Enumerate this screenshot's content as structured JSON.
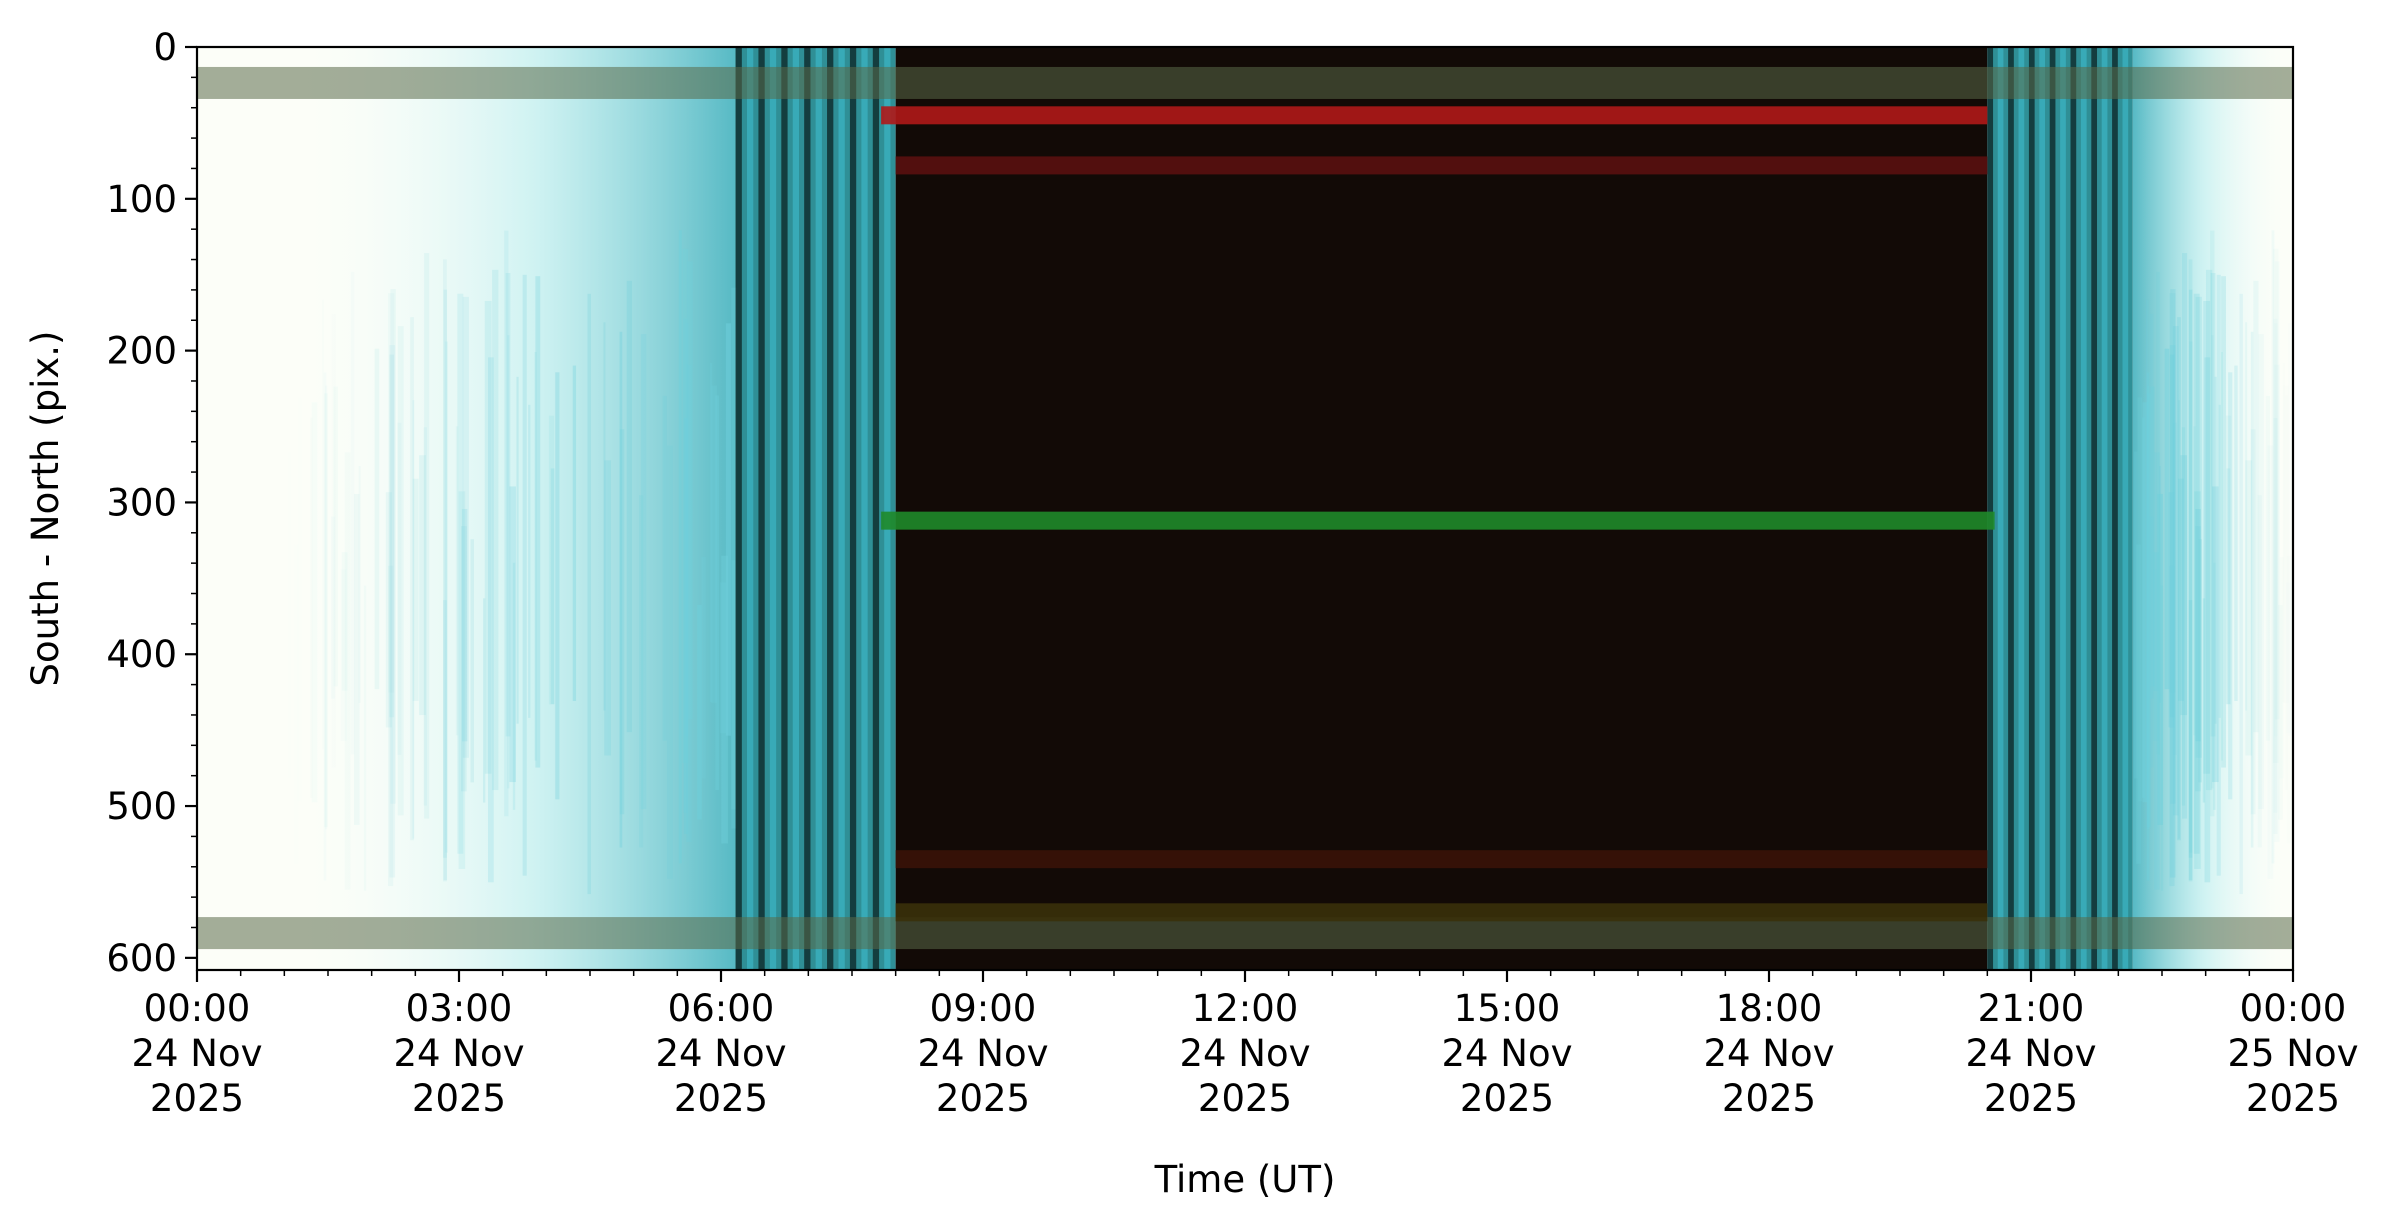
{
  "chart_data": {
    "type": "heatmap",
    "title": "",
    "xlabel": "Time (UT)",
    "ylabel": "South - North (pix.)",
    "xlim": [
      "2025-11-24T00:00",
      "2025-11-25T00:00"
    ],
    "ylim": [
      608,
      0
    ],
    "y_axis_inverted": true,
    "x_ticks": [
      {
        "time": "2025-11-24T00:00",
        "lines": [
          "00:00",
          "24 Nov",
          "2025"
        ]
      },
      {
        "time": "2025-11-24T03:00",
        "lines": [
          "03:00",
          "24 Nov",
          "2025"
        ]
      },
      {
        "time": "2025-11-24T06:00",
        "lines": [
          "06:00",
          "24 Nov",
          "2025"
        ]
      },
      {
        "time": "2025-11-24T09:00",
        "lines": [
          "09:00",
          "24 Nov",
          "2025"
        ]
      },
      {
        "time": "2025-11-24T12:00",
        "lines": [
          "12:00",
          "24 Nov",
          "2025"
        ]
      },
      {
        "time": "2025-11-24T15:00",
        "lines": [
          "15:00",
          "24 Nov",
          "2025"
        ]
      },
      {
        "time": "2025-11-24T18:00",
        "lines": [
          "18:00",
          "24 Nov",
          "2025"
        ]
      },
      {
        "time": "2025-11-24T21:00",
        "lines": [
          "21:00",
          "24 Nov",
          "2025"
        ]
      },
      {
        "time": "2025-11-25T00:00",
        "lines": [
          "00:00",
          "25 Nov",
          "2025"
        ]
      }
    ],
    "x_minor_tick_step_minutes": 30,
    "y_ticks": [
      0,
      100,
      200,
      300,
      400,
      500,
      600
    ],
    "y_minor_tick_step": 20,
    "regions": [
      {
        "name": "day-bright",
        "start": "2025-11-24T00:00",
        "end": "2025-11-24T06:10",
        "color": "#fcfef8"
      },
      {
        "name": "dusk-transition",
        "start": "2025-11-24T06:10",
        "end": "2025-11-24T08:00",
        "color": "#2f8f96"
      },
      {
        "name": "night",
        "start": "2025-11-24T08:00",
        "end": "2025-11-24T20:30",
        "color": "#120a06"
      },
      {
        "name": "dawn-transition",
        "start": "2025-11-24T20:30",
        "end": "2025-11-24T22:10",
        "color": "#2f8f96"
      },
      {
        "name": "day-bright",
        "start": "2025-11-24T22:10",
        "end": "2025-11-25T00:00",
        "color": "#fcfef8"
      }
    ],
    "bands": [
      {
        "y": 45,
        "start": "2025-11-24T07:50",
        "end": "2025-11-24T20:30",
        "color": "#b01818"
      },
      {
        "y": 78,
        "start": "2025-11-24T08:00",
        "end": "2025-11-24T20:30",
        "color": "#5a1010"
      },
      {
        "y": 312,
        "start": "2025-11-24T07:50",
        "end": "2025-11-24T20:35",
        "color": "#1f8a2a"
      },
      {
        "y": 535,
        "start": "2025-11-24T08:00",
        "end": "2025-11-24T20:30",
        "color": "#3a1208"
      },
      {
        "y": 570,
        "start": "2025-11-24T08:00",
        "end": "2025-11-24T20:30",
        "color": "#3a300a"
      }
    ],
    "edge_bands": [
      {
        "y": 25,
        "color": "#5a6a48"
      },
      {
        "y": 585,
        "color": "#5a6a48"
      }
    ],
    "colors": {
      "axes": "#000000",
      "cyan_streak": "#6fd0dc",
      "stripe_dark": "#0c2222"
    }
  }
}
